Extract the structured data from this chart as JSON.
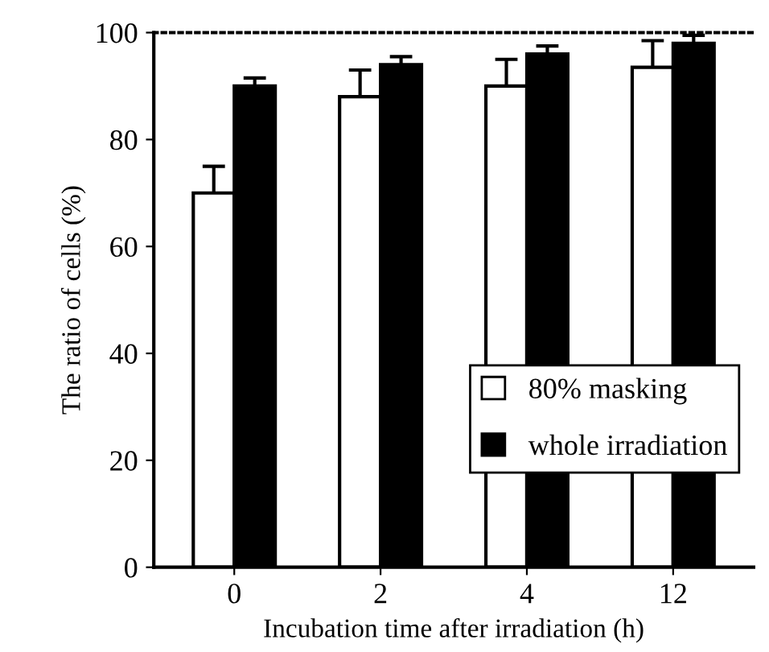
{
  "chart_data": {
    "type": "bar",
    "xlabel": "Incubation time after irradiation (h)",
    "ylabel": "The ratio of cells (%)",
    "categories": [
      "0",
      "2",
      "4",
      "12"
    ],
    "series": [
      {
        "name": "80% masking",
        "color": "#ffffff",
        "values": [
          70,
          88,
          90,
          93.5
        ],
        "errors": [
          5,
          5,
          5,
          5
        ]
      },
      {
        "name": "whole irradiation",
        "color": "#000000",
        "values": [
          90,
          94,
          96,
          98
        ],
        "errors": [
          1.5,
          1.5,
          1.5,
          1.5
        ]
      }
    ],
    "ylim": [
      0,
      100
    ],
    "yticks": [
      0,
      20,
      40,
      60,
      80,
      100
    ],
    "grid": false,
    "legend": "bottom right"
  }
}
